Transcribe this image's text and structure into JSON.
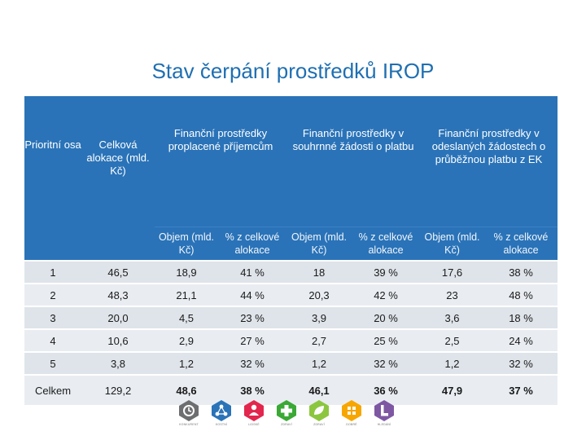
{
  "title": "Stav čerpání prostředků IROP",
  "table": {
    "h_priority": "Prioritní osa",
    "h_allocation": "Celková alokace (mld. Kč)",
    "h_group1": "Finanční prostředky proplacené příjemcům",
    "h_group2": "Finanční prostředky v souhrnné žádosti o platbu",
    "h_group3": "Finanční prostředky v odeslaných žádostech o průběžnou platbu z EK",
    "sub_volume": "Objem (mld. Kč)",
    "sub_share": "% z celkové alokace",
    "rows": [
      {
        "axis": "1",
        "alloc": "46,5",
        "v1": "18,9",
        "p1": "41 %",
        "v2": "18",
        "p2": "39 %",
        "v3": "17,6",
        "p3": "38 %"
      },
      {
        "axis": "2",
        "alloc": "48,3",
        "v1": "21,1",
        "p1": "44 %",
        "v2": "20,3",
        "p2": "42 %",
        "v3": "23",
        "p3": "48 %"
      },
      {
        "axis": "3",
        "alloc": "20,0",
        "v1": "4,5",
        "p1": "23 %",
        "v2": "3,9",
        "p2": "20 %",
        "v3": "3,6",
        "p3": "18 %"
      },
      {
        "axis": "4",
        "alloc": "10,6",
        "v1": "2,9",
        "p1": "27 %",
        "v2": "2,7",
        "p2": "25 %",
        "v3": "2,5",
        "p3": "24 %"
      },
      {
        "axis": "5",
        "alloc": "3,8",
        "v1": "1,2",
        "p1": "32 %",
        "v2": "1,2",
        "p2": "32 %",
        "v3": "1,2",
        "p3": "32 %"
      }
    ],
    "total": {
      "axis": "Celkem",
      "alloc": "129,2",
      "v1": "48,6",
      "p1": "38 %",
      "v2": "46,1",
      "p2": "36 %",
      "v3": "47,9",
      "p3": "37 %"
    }
  },
  "logos": [
    {
      "icon": "clock-icon",
      "caption": "KONKURENT",
      "color": "#6d6e70"
    },
    {
      "icon": "network-icon",
      "caption": "KOSTNÍ",
      "color": "#2a73b8"
    },
    {
      "icon": "person-icon",
      "caption": "LIDSKÉ",
      "color": "#e2264d"
    },
    {
      "icon": "plus-icon",
      "caption": "ZDRAVÍ",
      "color": "#3aa935"
    },
    {
      "icon": "leaf-icon",
      "caption": "ZDRAVÍ",
      "color": "#8cc63f"
    },
    {
      "icon": "grid-icon",
      "caption": "DOBRÉ",
      "color": "#f7a600"
    },
    {
      "icon": "l-icon",
      "caption": "HLEDÁNÍ",
      "color": "#7e57a3"
    }
  ]
}
